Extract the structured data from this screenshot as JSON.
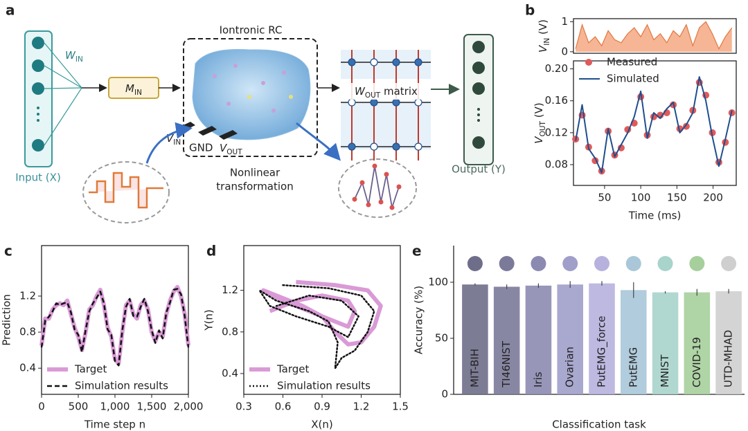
{
  "panel_labels": [
    "a",
    "b",
    "c",
    "d",
    "e"
  ],
  "diagram": {
    "title": "Iontronic RC",
    "input": "Input (X)",
    "output": "Output (Y)",
    "w_in": [
      {
        "t": "W"
      },
      {
        "t": "IN",
        "sub": true
      }
    ],
    "m_in": [
      {
        "t": "M"
      },
      {
        "t": "IN",
        "sub": true
      }
    ],
    "v_in": [
      {
        "t": "V"
      },
      {
        "t": "IN",
        "sub": true
      }
    ],
    "gnd": "GND",
    "v_out": [
      {
        "t": "V"
      },
      {
        "t": "OUT",
        "sub": true
      }
    ],
    "transform": [
      "Nonlinear",
      "transformation"
    ],
    "w_out": [
      {
        "t": "W"
      },
      {
        "t": "OUT",
        "sub": true
      },
      {
        "t": " matrix"
      }
    ]
  },
  "chart_data": [
    {
      "type": "area",
      "ylabel": [
        {
          "t": "V"
        },
        {
          "t": "IN",
          "sub": true
        },
        {
          "t": " (V)"
        }
      ],
      "x": [
        10,
        19,
        28,
        37,
        46,
        55,
        64,
        73,
        82,
        91,
        100,
        109,
        118,
        127,
        136,
        145,
        154,
        163,
        172,
        181,
        190,
        199,
        208,
        217,
        226
      ],
      "values": [
        0.1,
        0.9,
        0.3,
        0.5,
        0.2,
        0.7,
        0.4,
        0.3,
        0.6,
        0.8,
        0.5,
        0.9,
        0.4,
        0.6,
        0.3,
        0.7,
        0.5,
        0.9,
        0.2,
        0.8,
        1.0,
        0.6,
        0.1,
        0.5,
        0.8
      ],
      "color": "#f4a27a",
      "xlim": [
        7,
        232
      ],
      "ylim": [
        -0.05,
        1.1
      ],
      "yticks": [
        0,
        1
      ]
    },
    {
      "type": "line",
      "xlabel": "Time (ms)",
      "ylabel": [
        {
          "t": "V"
        },
        {
          "t": "OUT",
          "sub": true
        },
        {
          "t": " (V)"
        }
      ],
      "x": [
        10,
        19,
        28,
        37,
        46,
        55,
        64,
        73,
        82,
        91,
        100,
        109,
        118,
        127,
        136,
        145,
        154,
        163,
        172,
        181,
        190,
        199,
        208,
        217,
        226
      ],
      "series": [
        {
          "name": "Measured",
          "color": "#e05a5a",
          "mode": "markers",
          "values": [
            0.112,
            0.142,
            0.102,
            0.085,
            0.072,
            0.122,
            0.092,
            0.101,
            0.124,
            0.132,
            0.165,
            0.117,
            0.14,
            0.142,
            0.145,
            0.155,
            0.125,
            0.128,
            0.148,
            0.183,
            0.167,
            0.12,
            0.083,
            0.108,
            0.145
          ]
        },
        {
          "name": "Simulated",
          "color": "#1f4e8c",
          "mode": "lines",
          "values": [
            0.11,
            0.155,
            0.1,
            0.088,
            0.07,
            0.125,
            0.09,
            0.105,
            0.12,
            0.14,
            0.172,
            0.113,
            0.145,
            0.138,
            0.15,
            0.158,
            0.12,
            0.13,
            0.145,
            0.19,
            0.16,
            0.115,
            0.078,
            0.112,
            0.148
          ]
        }
      ],
      "xlim": [
        7,
        232
      ],
      "ylim": [
        0.054,
        0.21
      ],
      "xticks": [
        50,
        100,
        150,
        200
      ],
      "yticks": [
        0.08,
        0.12,
        0.16,
        {
          "value": 0.2,
          "label": "0.20"
        }
      ],
      "legend": "upper left"
    },
    {
      "type": "line",
      "xlabel": "Time step n",
      "ylabel": "Prediction",
      "x": [
        0,
        50,
        100,
        150,
        200,
        250,
        300,
        350,
        400,
        450,
        500,
        550,
        600,
        650,
        700,
        750,
        800,
        850,
        900,
        950,
        1000,
        1050,
        1100,
        1150,
        1200,
        1250,
        1300,
        1350,
        1400,
        1450,
        1500,
        1550,
        1600,
        1650,
        1700,
        1750,
        1800,
        1850,
        1900,
        1950,
        2000
      ],
      "series": [
        {
          "name": "Target",
          "color": "#d99ad6",
          "mode": "thick",
          "values": [
            0.65,
            0.95,
            0.95,
            1.05,
            1.1,
            1.12,
            1.1,
            1.15,
            1.0,
            0.85,
            0.75,
            0.6,
            0.8,
            1.05,
            1.1,
            1.2,
            1.27,
            1.1,
            0.85,
            0.75,
            0.5,
            0.45,
            0.8,
            1.1,
            1.15,
            1.0,
            0.95,
            1.1,
            1.15,
            1.05,
            0.8,
            0.7,
            0.8,
            0.75,
            1.0,
            1.15,
            1.25,
            1.3,
            1.2,
            1.0,
            0.65
          ]
        },
        {
          "name": "Simulation results",
          "color": "#111111",
          "mode": "dashed",
          "values": [
            0.63,
            0.93,
            0.97,
            1.03,
            1.12,
            1.1,
            1.12,
            1.13,
            1.02,
            0.83,
            0.77,
            0.58,
            0.82,
            1.03,
            1.12,
            1.18,
            1.25,
            1.12,
            0.83,
            0.77,
            0.48,
            0.43,
            0.82,
            1.08,
            1.17,
            0.98,
            0.97,
            1.08,
            1.17,
            1.03,
            0.82,
            0.68,
            0.82,
            0.73,
            1.02,
            1.13,
            1.27,
            1.28,
            1.22,
            0.98,
            0.63
          ]
        }
      ],
      "xlim": [
        0,
        2000
      ],
      "ylim": [
        0.11,
        1.76
      ],
      "xticks": [
        0,
        500,
        {
          "value": 1000,
          "label": "1,000"
        },
        {
          "value": 1500,
          "label": "1,500"
        },
        {
          "value": 2000,
          "label": "2,000"
        }
      ],
      "yticks": [
        0.4,
        0.8,
        1.2
      ],
      "legend": "lower left"
    },
    {
      "type": "line",
      "xlabel": "X(n)",
      "ylabel": "Y(n)",
      "series": [
        {
          "name": "Target",
          "color": "#d99ad6",
          "mode": "thick",
          "x": [
            0.7,
            1.0,
            1.25,
            1.35,
            1.3,
            1.2,
            1.1,
            1.0,
            0.9,
            0.75,
            0.55,
            0.45,
            0.6,
            0.8,
            1.0,
            1.1,
            1.15,
            1.1,
            0.9,
            0.7,
            0.5
          ],
          "values": [
            1.28,
            1.25,
            1.2,
            1.05,
            0.85,
            0.7,
            0.68,
            0.8,
            0.95,
            1.05,
            1.15,
            1.2,
            1.1,
            1.0,
            0.9,
            0.85,
            1.0,
            1.1,
            1.15,
            1.1,
            1.0
          ]
        },
        {
          "name": "Simulation results",
          "color": "#111111",
          "mode": "dotted",
          "x": [
            0.6,
            0.95,
            1.2,
            1.3,
            1.25,
            1.15,
            1.05,
            1.0,
            1.02,
            0.95,
            0.8,
            0.55,
            0.42,
            0.5,
            0.7,
            0.95,
            1.1,
            1.18,
            1.05,
            0.8,
            0.55
          ],
          "values": [
            1.25,
            1.22,
            1.15,
            1.0,
            0.8,
            0.62,
            0.55,
            0.45,
            0.7,
            0.9,
            1.0,
            1.1,
            1.2,
            1.05,
            0.95,
            0.85,
            0.75,
            0.95,
            1.1,
            1.15,
            1.05
          ]
        }
      ],
      "xlim": [
        0.3,
        1.5
      ],
      "ylim": [
        0.2,
        1.63
      ],
      "xticks": [
        0.3,
        0.6,
        0.9,
        1.2,
        1.5
      ],
      "yticks": [
        0.4,
        0.8,
        1.2
      ],
      "legend": "lower left"
    },
    {
      "type": "bar",
      "xlabel": "Classification task",
      "ylabel": "Accuracy (%)",
      "categories": [
        "MIT-BIH",
        "TI46NIST",
        "Iris",
        "Ovarian",
        "PutEMG_force",
        "PutEMG",
        "MNIST",
        "COVID-19",
        "UTD-MHAD"
      ],
      "values": [
        98,
        96,
        97,
        98,
        99,
        93,
        91,
        91,
        92
      ],
      "errors": [
        1,
        2,
        2,
        3,
        2,
        7,
        1,
        3,
        2
      ],
      "colors": [
        "#6f6e8a",
        "#7b7a99",
        "#8c8ab0",
        "#a09fca",
        "#b7b1de",
        "#a9c7d8",
        "#a8d4cb",
        "#a6cf9c",
        "#cfcfcf"
      ],
      "ylim": [
        0,
        132.7
      ],
      "yticks": [
        0,
        50,
        100
      ]
    }
  ]
}
